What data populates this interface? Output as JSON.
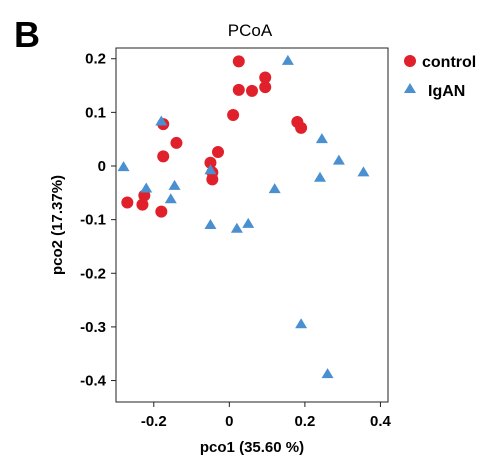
{
  "panel_label": "B",
  "chart_data": {
    "type": "scatter",
    "title": "PCoA",
    "xlabel": "pco1 (35.60 %)",
    "ylabel": "pco2   (17.37%)",
    "xlim": [
      -0.3,
      0.42
    ],
    "ylim": [
      -0.44,
      0.22
    ],
    "x_ticks": [
      -0.2,
      0,
      0.2,
      0.4
    ],
    "x_tick_labels": [
      "-0.2",
      "0",
      "0.2",
      "0.4"
    ],
    "y_ticks": [
      0.2,
      0.1,
      0,
      -0.1,
      -0.2,
      -0.3,
      -0.4
    ],
    "y_tick_labels": [
      "0.2",
      "0.1",
      "0",
      "-0.1",
      "-0.2",
      "-0.3",
      "-0.4"
    ],
    "grid": false,
    "legend_position": "top-right (outside plot)",
    "series": [
      {
        "name": "control",
        "marker": "circle",
        "color": "#e0202a",
        "points": [
          [
            -0.27,
            -0.068
          ],
          [
            -0.23,
            -0.072
          ],
          [
            -0.225,
            -0.055
          ],
          [
            -0.18,
            -0.085
          ],
          [
            -0.175,
            0.078
          ],
          [
            -0.175,
            0.018
          ],
          [
            -0.14,
            0.043
          ],
          [
            -0.05,
            0.006
          ],
          [
            -0.045,
            -0.012
          ],
          [
            -0.045,
            -0.025
          ],
          [
            -0.03,
            0.026
          ],
          [
            0.01,
            0.095
          ],
          [
            0.025,
            0.195
          ],
          [
            0.025,
            0.142
          ],
          [
            0.06,
            0.14
          ],
          [
            0.095,
            0.165
          ],
          [
            0.095,
            0.147
          ],
          [
            0.18,
            0.082
          ],
          [
            0.19,
            0.071
          ]
        ]
      },
      {
        "name": "IgAN",
        "marker": "triangle",
        "color": "#4a90d0",
        "points": [
          [
            -0.28,
            -0.002
          ],
          [
            -0.22,
            -0.042
          ],
          [
            -0.18,
            0.083
          ],
          [
            -0.155,
            -0.062
          ],
          [
            -0.145,
            -0.037
          ],
          [
            -0.05,
            -0.11
          ],
          [
            -0.05,
            -0.008
          ],
          [
            0.02,
            -0.117
          ],
          [
            0.05,
            -0.108
          ],
          [
            0.12,
            -0.043
          ],
          [
            0.155,
            0.196
          ],
          [
            0.19,
            -0.295
          ],
          [
            0.24,
            -0.022
          ],
          [
            0.245,
            0.05
          ],
          [
            0.26,
            -0.388
          ],
          [
            0.29,
            0.01
          ],
          [
            0.355,
            -0.012
          ]
        ]
      }
    ]
  }
}
